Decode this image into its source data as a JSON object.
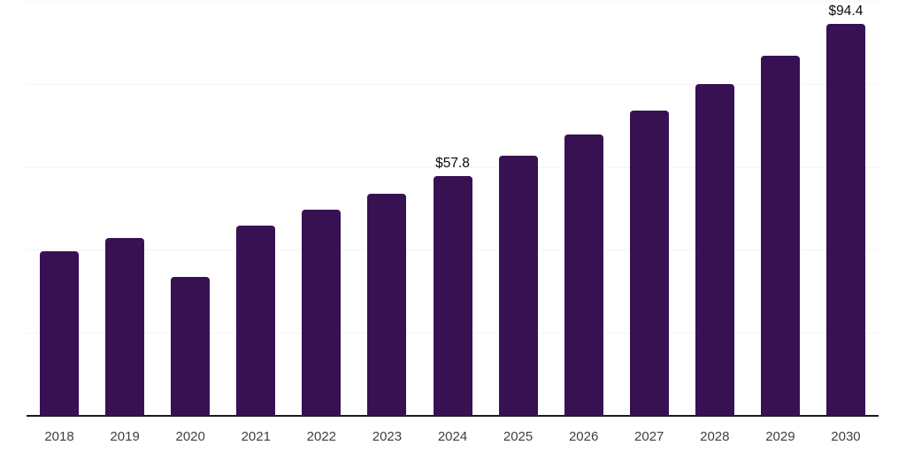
{
  "chart_style": {
    "background_color": "#ffffff",
    "bar_color": "#381153",
    "axis_line_color": "#1a1a1a",
    "gridline_color": "#f5f5f5",
    "tick_label_color": "#3f3f3f",
    "value_label_color": "#0a0a0a"
  },
  "chart_data": {
    "type": "bar",
    "title": "",
    "xlabel": "",
    "ylabel": "",
    "categories": [
      "2018",
      "2019",
      "2020",
      "2021",
      "2022",
      "2023",
      "2024",
      "2025",
      "2026",
      "2027",
      "2028",
      "2029",
      "2030"
    ],
    "values": [
      39.7,
      42.9,
      33.5,
      45.9,
      49.6,
      53.5,
      57.8,
      62.6,
      67.9,
      73.6,
      79.9,
      86.8,
      94.4
    ],
    "value_labels": [
      "",
      "",
      "",
      "",
      "",
      "",
      "$57.8",
      "",
      "",
      "",
      "",
      "",
      "$94.4"
    ],
    "unit_prefix": "$",
    "ylim": [
      0,
      100
    ],
    "grid_step": 20,
    "grid": "horizontal",
    "legend_position": "none",
    "y_axis_labels_visible": false,
    "bar_corner_radius_px": 4
  }
}
